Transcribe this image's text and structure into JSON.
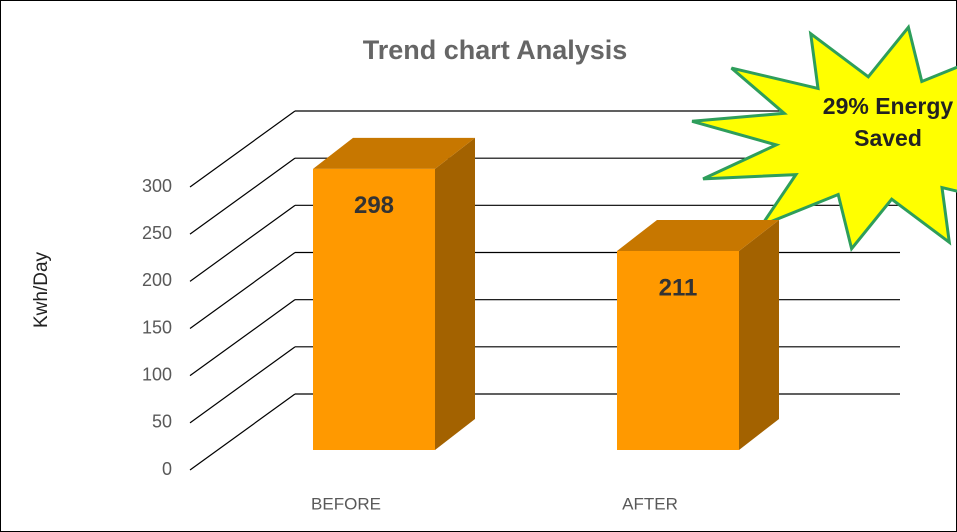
{
  "chart_data": {
    "type": "bar3d",
    "title": "Trend chart Analysis",
    "y_label": "Kwh/Day",
    "categories": [
      "BEFORE",
      "AFTER"
    ],
    "values": [
      298,
      211
    ],
    "color": "#ff9900",
    "ylim": [
      0,
      300
    ],
    "yticks": [
      0,
      50,
      100,
      150,
      200,
      250,
      300
    ],
    "grid": true,
    "annotation": [
      "29% Energy",
      "Saved"
    ]
  }
}
